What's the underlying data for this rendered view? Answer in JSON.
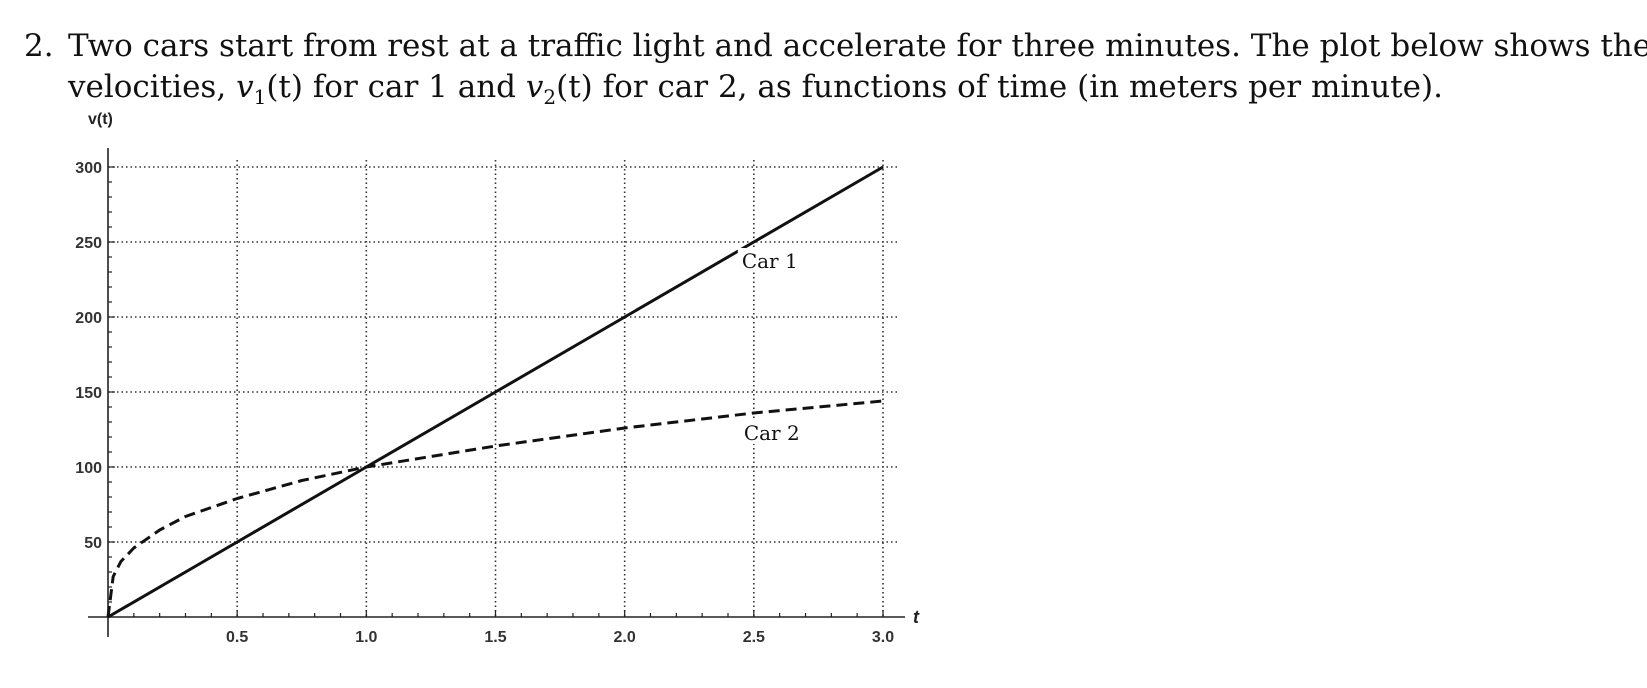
{
  "problem": {
    "number": "2.",
    "line1": "Two cars start from rest at a traffic light and accelerate for three minutes. The plot below shows their",
    "line2_prefix": "velocities, ",
    "v1_symbol": "v",
    "v1_sub": "1",
    "v1_arg": "(t)",
    "line2_mid1": " for car 1 and ",
    "v2_symbol": "v",
    "v2_sub": "2",
    "v2_arg": "(t)",
    "line2_suffix": " for car 2, as functions of time (in meters per minute)."
  },
  "chart_data": {
    "type": "line",
    "xlabel": "t",
    "ylabel": "v(t)",
    "xlim": [
      0,
      3.0
    ],
    "ylim": [
      0,
      300
    ],
    "x_ticks": [
      0.5,
      1.0,
      1.5,
      2.0,
      2.5,
      3.0
    ],
    "x_tick_labels": [
      "0.5",
      "1.0",
      "1.5",
      "2.0",
      "2.5",
      "3.0"
    ],
    "y_ticks": [
      50,
      100,
      150,
      200,
      250,
      300
    ],
    "y_tick_labels": [
      "50",
      "100",
      "150",
      "200",
      "250",
      "300"
    ],
    "grid": true,
    "series": [
      {
        "name": "Car 1",
        "style": "solid",
        "color": "#111111",
        "x": [
          0,
          0.5,
          1.0,
          1.5,
          2.0,
          2.5,
          3.0
        ],
        "y": [
          0,
          50,
          100,
          150,
          200,
          250,
          300
        ]
      },
      {
        "name": "Car 2",
        "style": "dashed",
        "color": "#111111",
        "x": [
          0,
          0.02,
          0.05,
          0.1,
          0.2,
          0.3,
          0.5,
          0.75,
          1.0,
          1.5,
          2.0,
          2.5,
          3.0
        ],
        "y": [
          0,
          27,
          37,
          46,
          58,
          67,
          79,
          91,
          100,
          114,
          126,
          136,
          144
        ]
      }
    ]
  }
}
